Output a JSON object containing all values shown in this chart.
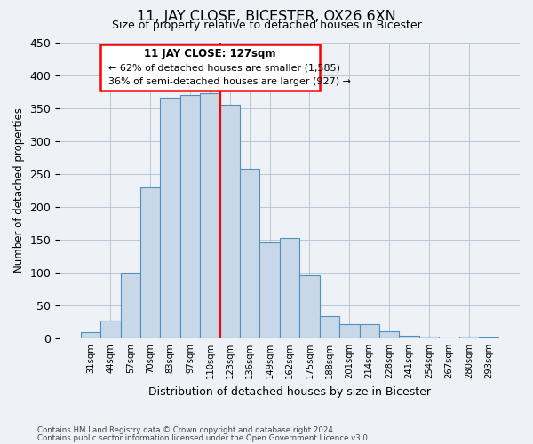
{
  "title": "11, JAY CLOSE, BICESTER, OX26 6XN",
  "subtitle": "Size of property relative to detached houses in Bicester",
  "xlabel": "Distribution of detached houses by size in Bicester",
  "ylabel": "Number of detached properties",
  "bin_labels": [
    "31sqm",
    "44sqm",
    "57sqm",
    "70sqm",
    "83sqm",
    "97sqm",
    "110sqm",
    "123sqm",
    "136sqm",
    "149sqm",
    "162sqm",
    "175sqm",
    "188sqm",
    "201sqm",
    "214sqm",
    "228sqm",
    "241sqm",
    "254sqm",
    "267sqm",
    "280sqm",
    "293sqm"
  ],
  "bar_heights": [
    10,
    27,
    100,
    230,
    365,
    370,
    373,
    355,
    258,
    146,
    153,
    96,
    33,
    22,
    22,
    11,
    4,
    2,
    0,
    2,
    1
  ],
  "bar_color": "#c8d8e8",
  "bar_edgecolor": "#5090c0",
  "property_bin_index": 7,
  "annotation_title": "11 JAY CLOSE: 127sqm",
  "annotation_line1": "← 62% of detached houses are smaller (1,585)",
  "annotation_line2": "36% of semi-detached houses are larger (927) →",
  "ylim": [
    0,
    450
  ],
  "yticks": [
    0,
    50,
    100,
    150,
    200,
    250,
    300,
    350,
    400,
    450
  ],
  "footer_line1": "Contains HM Land Registry data © Crown copyright and database right 2024.",
  "footer_line2": "Contains public sector information licensed under the Open Government Licence v3.0.",
  "background_color": "#eef2f7",
  "grid_color": "#b0bfcf"
}
